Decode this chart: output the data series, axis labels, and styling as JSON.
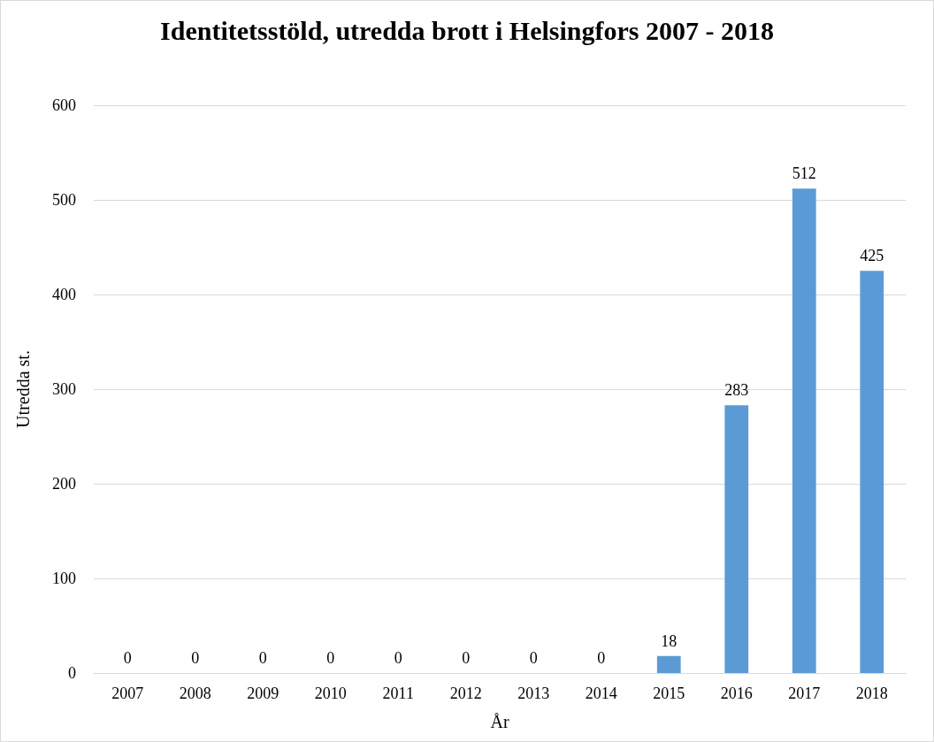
{
  "chart_data": {
    "type": "bar",
    "title": "Identitetsstöld, utredda brott i Helsingfors 2007 - 2018",
    "xlabel": "År",
    "ylabel": "Utredda st.",
    "categories": [
      "2007",
      "2008",
      "2009",
      "2010",
      "2011",
      "2012",
      "2013",
      "2014",
      "2015",
      "2016",
      "2017",
      "2018"
    ],
    "values": [
      0,
      0,
      0,
      0,
      0,
      0,
      0,
      0,
      18,
      283,
      512,
      425
    ],
    "color": "#5b9bd5",
    "ylim": [
      0,
      600
    ],
    "yticks": [
      0,
      100,
      200,
      300,
      400,
      500,
      600
    ],
    "grid": true,
    "data_labels": true
  }
}
